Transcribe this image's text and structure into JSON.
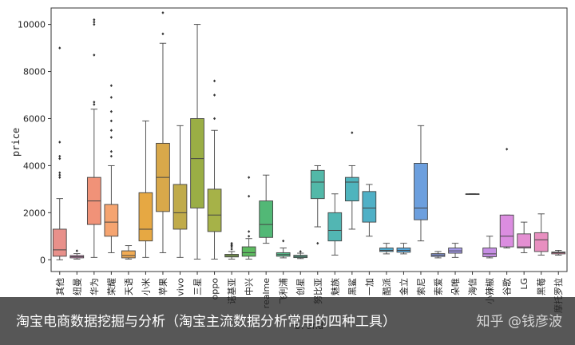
{
  "banner": {
    "title": "淘宝电商数据挖掘与分析（淘宝主流数据分析常用的四种工具）",
    "watermark": "知乎 @钱彦波"
  },
  "chart_data": {
    "type": "boxplot",
    "xlabel": "brand",
    "ylabel": "price",
    "ylim": [
      -500,
      10700
    ],
    "yticks": [
      0,
      2000,
      4000,
      6000,
      8000,
      10000
    ],
    "grid": false,
    "series": [
      {
        "name": "其他",
        "color": "#e8908a",
        "whislo": 0,
        "q1": 150,
        "med": 420,
        "q3": 1300,
        "whishi": 2600,
        "fliers": [
          3500,
          3600,
          3700,
          4300,
          4400,
          5000,
          9000
        ]
      },
      {
        "name": "纽曼",
        "color": "#dd8cc4",
        "whislo": 30,
        "q1": 80,
        "med": 130,
        "q3": 180,
        "whishi": 260,
        "fliers": [
          380
        ]
      },
      {
        "name": "华为",
        "color": "#f09278",
        "whislo": 100,
        "q1": 1500,
        "med": 2500,
        "q3": 3500,
        "whishi": 6400,
        "fliers": [
          6600,
          6700,
          8700,
          10000,
          10100,
          10200
        ]
      },
      {
        "name": "荣耀",
        "color": "#f5a470",
        "whislo": 300,
        "q1": 1000,
        "med": 1600,
        "q3": 2350,
        "whishi": 4000,
        "fliers": [
          4400,
          4600,
          5200,
          5500,
          5900,
          6300,
          6900,
          7400
        ]
      },
      {
        "name": "天语",
        "color": "#f2ac55",
        "whislo": 30,
        "q1": 80,
        "med": 180,
        "q3": 380,
        "whishi": 600,
        "fliers": []
      },
      {
        "name": "小米",
        "color": "#e6a843",
        "whislo": 100,
        "q1": 800,
        "med": 1300,
        "q3": 2850,
        "whishi": 5900,
        "fliers": []
      },
      {
        "name": "苹果",
        "color": "#d8a84a",
        "whislo": 300,
        "q1": 2050,
        "med": 3500,
        "q3": 4950,
        "whishi": 9200,
        "fliers": [
          9600,
          10500
        ]
      },
      {
        "name": "vivo",
        "color": "#c0ab4a",
        "whislo": 100,
        "q1": 1300,
        "med": 2000,
        "q3": 3200,
        "whishi": 5700,
        "fliers": []
      },
      {
        "name": "三星",
        "color": "#9aae45",
        "whislo": 30,
        "q1": 2200,
        "med": 4300,
        "q3": 6000,
        "whishi": 10000,
        "fliers": []
      },
      {
        "name": "oppo",
        "color": "#a6b248",
        "whislo": 30,
        "q1": 1200,
        "med": 1900,
        "q3": 3000,
        "whishi": 5500,
        "fliers": [
          6000,
          7000,
          7600
        ]
      },
      {
        "name": "诺基亚",
        "color": "#8cbb52",
        "whislo": 30,
        "q1": 120,
        "med": 170,
        "q3": 230,
        "whishi": 350,
        "fliers": [
          450,
          550,
          600,
          650,
          700
        ]
      },
      {
        "name": "中兴",
        "color": "#5dbb60",
        "whislo": 30,
        "q1": 150,
        "med": 300,
        "q3": 550,
        "whishi": 900,
        "fliers": [
          1000,
          1200,
          2700,
          3500
        ]
      },
      {
        "name": "realme",
        "color": "#52b876",
        "whislo": 700,
        "q1": 950,
        "med": 1500,
        "q3": 2500,
        "whishi": 3600,
        "fliers": []
      },
      {
        "name": "飞利浦",
        "color": "#55bb8a",
        "whislo": 80,
        "q1": 150,
        "med": 220,
        "q3": 300,
        "whishi": 500,
        "fliers": [
          800
        ]
      },
      {
        "name": "创星",
        "color": "#54b896",
        "whislo": 50,
        "q1": 90,
        "med": 140,
        "q3": 190,
        "whishi": 280,
        "fliers": [
          350
        ]
      },
      {
        "name": "努比亚",
        "color": "#52b8a8",
        "whislo": 1400,
        "q1": 2600,
        "med": 3300,
        "q3": 3800,
        "whishi": 4000,
        "fliers": [
          700
        ]
      },
      {
        "name": "魅族",
        "color": "#52b6b3",
        "whislo": 200,
        "q1": 800,
        "med": 1250,
        "q3": 2000,
        "whishi": 2800,
        "fliers": []
      },
      {
        "name": "黑鲨",
        "color": "#4fb4bd",
        "whislo": 1300,
        "q1": 2500,
        "med": 3300,
        "q3": 3500,
        "whishi": 4000,
        "fliers": [
          5400
        ]
      },
      {
        "name": "一加",
        "color": "#4fb0c6",
        "whislo": 1000,
        "q1": 1600,
        "med": 2200,
        "q3": 2900,
        "whishi": 3200,
        "fliers": []
      },
      {
        "name": "酷派",
        "color": "#50abcf",
        "whislo": 250,
        "q1": 350,
        "med": 400,
        "q3": 500,
        "whishi": 700,
        "fliers": []
      },
      {
        "name": "金立",
        "color": "#54a5d8",
        "whislo": 250,
        "q1": 320,
        "med": 400,
        "q3": 500,
        "whishi": 700,
        "fliers": []
      },
      {
        "name": "索尼",
        "color": "#6c9fde",
        "whislo": 800,
        "q1": 1700,
        "med": 2200,
        "q3": 4100,
        "whishi": 5700,
        "fliers": []
      },
      {
        "name": "索爱",
        "color": "#8c9ee6",
        "whislo": 80,
        "q1": 140,
        "med": 200,
        "q3": 260,
        "whishi": 350,
        "fliers": []
      },
      {
        "name": "朵唯",
        "color": "#a399e8",
        "whislo": 100,
        "q1": 280,
        "med": 380,
        "q3": 500,
        "whishi": 700,
        "fliers": []
      },
      {
        "name": "海信",
        "color": "#b496e6",
        "whislo": 2800,
        "q1": 2800,
        "med": 2800,
        "q3": 2800,
        "whishi": 2800,
        "fliers": []
      },
      {
        "name": "小辣椒",
        "color": "#c68fe4",
        "whislo": 80,
        "q1": 130,
        "med": 250,
        "q3": 500,
        "whishi": 1000,
        "fliers": []
      },
      {
        "name": "谷歌",
        "color": "#db8de0",
        "whislo": 500,
        "q1": 550,
        "med": 1000,
        "q3": 1900,
        "whishi": 1900,
        "fliers": [
          4700
        ]
      },
      {
        "name": "LG",
        "color": "#e48fd2",
        "whislo": 300,
        "q1": 500,
        "med": 550,
        "q3": 1100,
        "whishi": 1600,
        "fliers": []
      },
      {
        "name": "黑莓",
        "color": "#e88fc0",
        "whislo": 200,
        "q1": 350,
        "med": 850,
        "q3": 1150,
        "whishi": 1950,
        "fliers": []
      },
      {
        "name": "摩托罗拉",
        "color": "#ea90b0",
        "whislo": 200,
        "q1": 250,
        "med": 300,
        "q3": 330,
        "whishi": 400,
        "fliers": []
      }
    ]
  }
}
